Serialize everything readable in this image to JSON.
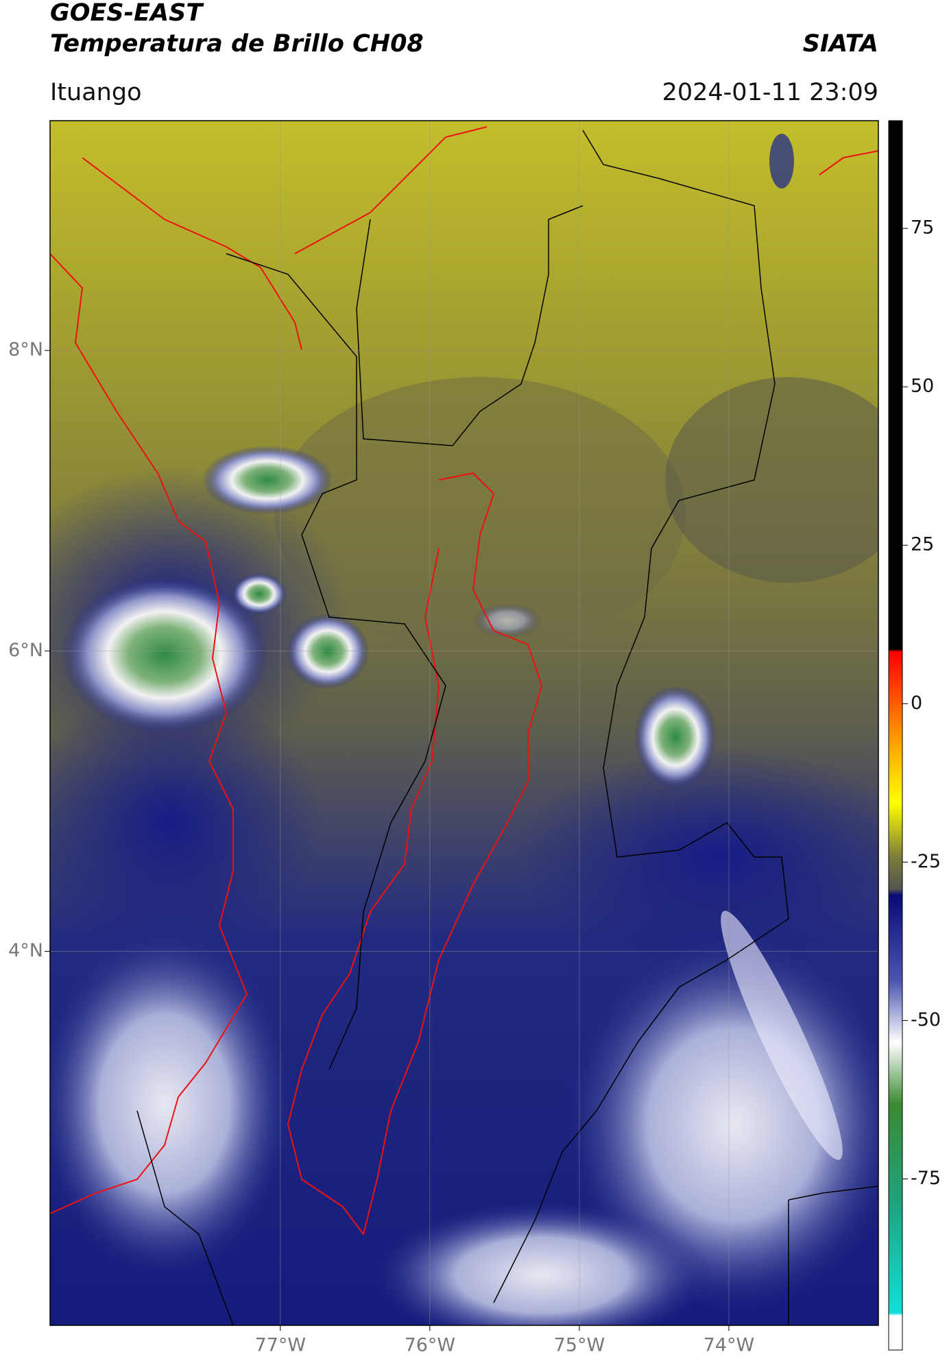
{
  "header": {
    "title": "GOES-EAST",
    "subtitle": "Temperatura de Brillo CH08",
    "organization": "SIATA",
    "location": "Ituango",
    "datetime": "2024-01-11 23:09"
  },
  "map": {
    "xlim": [
      -78.54,
      -73.0
    ],
    "ylim": [
      1.51,
      9.53
    ],
    "xticks": [
      {
        "value": -77,
        "label": "77°W"
      },
      {
        "value": -76,
        "label": "76°W"
      },
      {
        "value": -75,
        "label": "75°W"
      },
      {
        "value": -74,
        "label": "74°W"
      }
    ],
    "yticks": [
      {
        "value": 8,
        "label": "8°N"
      },
      {
        "value": 6,
        "label": "6°N"
      },
      {
        "value": 4,
        "label": "4°N"
      }
    ],
    "grid": true
  },
  "colorbar": {
    "lim": [
      -102,
      92
    ],
    "ticks": [
      75,
      50,
      25,
      0,
      -25,
      -50,
      -75
    ]
  }
}
